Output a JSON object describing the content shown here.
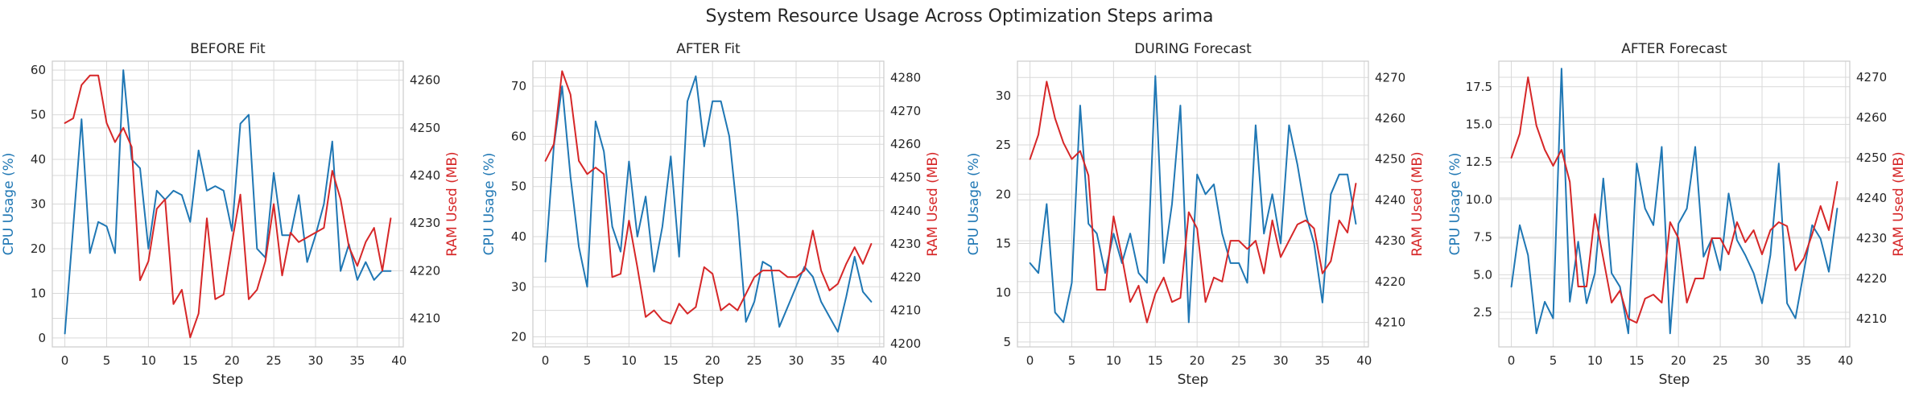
{
  "figure": {
    "title": "System Resource Usage Across Optimization Steps arima",
    "cpu_color": "#1f77b4",
    "ram_color": "#d62728"
  },
  "chart_data": [
    {
      "type": "line",
      "title": "BEFORE Fit",
      "xlabel": "Step",
      "ylabel_left": "CPU Usage (%)",
      "ylabel_right": "RAM Used (MB)",
      "xlim": [
        -1.5,
        40.5
      ],
      "ylim_left": [
        -2,
        62
      ],
      "ylim_right": [
        4204,
        4264
      ],
      "x_ticks": [
        0,
        5,
        10,
        15,
        20,
        25,
        30,
        35,
        40
      ],
      "y_ticks_left": [
        0,
        10,
        20,
        30,
        40,
        50,
        60
      ],
      "y_ticks_right": [
        4210,
        4220,
        4230,
        4240,
        4250,
        4260
      ],
      "grid": true,
      "x": [
        0,
        1,
        2,
        3,
        4,
        5,
        6,
        7,
        8,
        9,
        10,
        11,
        12,
        13,
        14,
        15,
        16,
        17,
        18,
        19,
        20,
        21,
        22,
        23,
        24,
        25,
        26,
        27,
        28,
        29,
        30,
        31,
        32,
        33,
        34,
        35,
        36,
        37,
        38,
        39
      ],
      "series": [
        {
          "name": "CPU Usage (%)",
          "axis": "left",
          "color": "#1f77b4",
          "values": [
            1,
            25,
            49,
            19,
            26,
            25,
            19,
            60,
            40,
            38,
            20,
            33,
            31,
            33,
            32,
            26,
            42,
            33,
            34,
            33,
            24,
            48,
            50,
            20,
            18,
            37,
            23,
            23,
            32,
            17,
            23,
            30,
            44,
            15,
            21,
            13,
            17,
            13,
            15,
            15
          ]
        },
        {
          "name": "RAM Used (MB)",
          "axis": "left_right",
          "color": "#d62728",
          "values": [
            4251,
            4252,
            4259,
            4261,
            4261,
            4251,
            4247,
            4250,
            4246,
            4218,
            4222,
            4233,
            4235,
            4213,
            4216,
            4206,
            4211,
            4231,
            4214,
            4215,
            4226,
            4236,
            4214,
            4216,
            4222,
            4234,
            4219,
            4228,
            4226,
            4227,
            4228,
            4229,
            4241,
            4235,
            4225,
            4221,
            4226,
            4229,
            4220,
            4231
          ]
        }
      ]
    },
    {
      "type": "line",
      "title": "AFTER Fit",
      "xlabel": "Step",
      "ylabel_left": "CPU Usage (%)",
      "ylabel_right": "RAM Used (MB)",
      "xlim": [
        -1.5,
        40.5
      ],
      "ylim_left": [
        18,
        75
      ],
      "ylim_right": [
        4199,
        4285
      ],
      "x_ticks": [
        0,
        5,
        10,
        15,
        20,
        25,
        30,
        35,
        40
      ],
      "y_ticks_left": [
        20,
        30,
        40,
        50,
        60,
        70
      ],
      "y_ticks_right": [
        4200,
        4210,
        4220,
        4230,
        4240,
        4250,
        4260,
        4270,
        4280
      ],
      "grid": true,
      "x": [
        0,
        1,
        2,
        3,
        4,
        5,
        6,
        7,
        8,
        9,
        10,
        11,
        12,
        13,
        14,
        15,
        16,
        17,
        18,
        19,
        20,
        21,
        22,
        23,
        24,
        25,
        26,
        27,
        28,
        29,
        30,
        31,
        32,
        33,
        34,
        35,
        36,
        37,
        38,
        39
      ],
      "series": [
        {
          "name": "CPU Usage (%)",
          "axis": "left",
          "color": "#1f77b4",
          "values": [
            35,
            58,
            70,
            52,
            38,
            30,
            63,
            57,
            42,
            37,
            55,
            40,
            48,
            33,
            42,
            56,
            36,
            67,
            72,
            58,
            67,
            67,
            60,
            44,
            23,
            27,
            35,
            34,
            22,
            26,
            30,
            34,
            32,
            27,
            24,
            21,
            28,
            36,
            29,
            27
          ]
        },
        {
          "name": "RAM Used (MB)",
          "axis": "right",
          "color": "#d62728",
          "values": [
            4255,
            4260,
            4282,
            4275,
            4255,
            4251,
            4253,
            4251,
            4220,
            4221,
            4237,
            4223,
            4208,
            4210,
            4207,
            4206,
            4212,
            4209,
            4211,
            4223,
            4221,
            4210,
            4212,
            4210,
            4215,
            4220,
            4222,
            4222,
            4222,
            4220,
            4220,
            4222,
            4234,
            4222,
            4216,
            4218,
            4224,
            4229,
            4224,
            4230
          ]
        }
      ]
    },
    {
      "type": "line",
      "title": "DURING Forecast",
      "xlabel": "Step",
      "ylabel_left": "CPU Usage (%)",
      "ylabel_right": "RAM Used (MB)",
      "xlim": [
        -1.5,
        40.5
      ],
      "ylim_left": [
        4.5,
        33.5
      ],
      "ylim_right": [
        4204,
        4274
      ],
      "x_ticks": [
        0,
        5,
        10,
        15,
        20,
        25,
        30,
        35,
        40
      ],
      "y_ticks_left": [
        5,
        10,
        15,
        20,
        25,
        30
      ],
      "y_ticks_right": [
        4210,
        4220,
        4230,
        4240,
        4250,
        4260,
        4270
      ],
      "grid": true,
      "x": [
        0,
        1,
        2,
        3,
        4,
        5,
        6,
        7,
        8,
        9,
        10,
        11,
        12,
        13,
        14,
        15,
        16,
        17,
        18,
        19,
        20,
        21,
        22,
        23,
        24,
        25,
        26,
        27,
        28,
        29,
        30,
        31,
        32,
        33,
        34,
        35,
        36,
        37,
        38,
        39
      ],
      "series": [
        {
          "name": "CPU Usage (%)",
          "axis": "left",
          "color": "#1f77b4",
          "values": [
            13,
            12,
            19,
            8,
            7,
            11,
            29,
            17,
            16,
            12,
            16,
            13,
            16,
            12,
            11,
            32,
            13,
            19,
            29,
            7,
            22,
            20,
            21,
            16,
            13,
            13,
            11,
            27,
            16,
            20,
            15,
            27,
            23,
            18,
            15,
            9,
            20,
            22,
            22,
            17
          ]
        },
        {
          "name": "RAM Used (MB)",
          "axis": "right",
          "color": "#d62728",
          "values": [
            4250,
            4256,
            4269,
            4260,
            4254,
            4250,
            4252,
            4246,
            4218,
            4218,
            4236,
            4226,
            4215,
            4219,
            4210,
            4217,
            4221,
            4215,
            4216,
            4237,
            4233,
            4215,
            4221,
            4220,
            4230,
            4230,
            4228,
            4230,
            4222,
            4235,
            4226,
            4230,
            4234,
            4235,
            4233,
            4222,
            4225,
            4235,
            4232,
            4244
          ]
        }
      ]
    },
    {
      "type": "line",
      "title": "AFTER Forecast",
      "xlabel": "Step",
      "ylabel_left": "CPU Usage (%)",
      "ylabel_right": "RAM Used (MB)",
      "xlim": [
        -1.5,
        40.5
      ],
      "ylim_left": [
        0.2,
        19.2
      ],
      "ylim_right": [
        4203,
        4274
      ],
      "x_ticks": [
        0,
        5,
        10,
        15,
        20,
        25,
        30,
        35,
        40
      ],
      "y_ticks_left": [
        2.5,
        5.0,
        7.5,
        10.0,
        12.5,
        15.0,
        17.5
      ],
      "y_ticks_left_labels": [
        "2.5",
        "5.0",
        "7.5",
        "10.0",
        "12.5",
        "15.0",
        "17.5"
      ],
      "y_ticks_right": [
        4210,
        4220,
        4230,
        4240,
        4250,
        4260,
        4270
      ],
      "grid": true,
      "x": [
        0,
        1,
        2,
        3,
        4,
        5,
        6,
        7,
        8,
        9,
        10,
        11,
        12,
        13,
        14,
        15,
        16,
        17,
        18,
        19,
        20,
        21,
        22,
        23,
        24,
        25,
        26,
        27,
        28,
        29,
        30,
        31,
        32,
        33,
        34,
        35,
        36,
        37,
        38,
        39
      ],
      "series": [
        {
          "name": "CPU Usage (%)",
          "axis": "left",
          "color": "#1f77b4",
          "values": [
            4.2,
            8.3,
            6.3,
            1.1,
            3.2,
            2.1,
            18.7,
            3.2,
            7.2,
            3.1,
            5.1,
            11.4,
            5.1,
            4.2,
            1.1,
            12.4,
            9.4,
            8.3,
            13.5,
            1.1,
            8.4,
            9.4,
            13.5,
            6.2,
            7.4,
            5.3,
            10.4,
            7.3,
            6.3,
            5.1,
            3.1,
            6.3,
            12.4,
            3.1,
            2.1,
            5.2,
            8.3,
            7.4,
            5.2,
            9.4
          ]
        },
        {
          "name": "RAM Used (MB)",
          "axis": "right",
          "color": "#d62728",
          "values": [
            4250,
            4256,
            4270,
            4258,
            4252,
            4248,
            4252,
            4244,
            4218,
            4218,
            4236,
            4225,
            4214,
            4217,
            4210,
            4209,
            4215,
            4216,
            4214,
            4234,
            4230,
            4214,
            4220,
            4220,
            4230,
            4230,
            4226,
            4234,
            4229,
            4232,
            4226,
            4232,
            4234,
            4233,
            4222,
            4225,
            4231,
            4238,
            4232,
            4244
          ]
        }
      ]
    }
  ]
}
